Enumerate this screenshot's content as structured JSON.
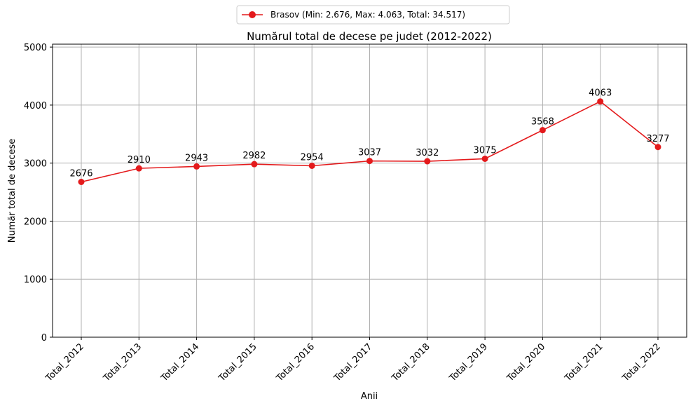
{
  "chart_data": {
    "type": "line",
    "title": "Numărul total de decese pe judet (2012-2022)",
    "xlabel": "Anii",
    "ylabel": "Număr total de decese",
    "categories": [
      "Total_2012",
      "Total_2013",
      "Total_2014",
      "Total_2015",
      "Total_2016",
      "Total_2017",
      "Total_2018",
      "Total_2019",
      "Total_2020",
      "Total_2021",
      "Total_2022"
    ],
    "series": [
      {
        "name": "Brasov (Min: 2.676, Max: 4.063, Total: 34.517)",
        "color": "#e41a1c",
        "values": [
          2676,
          2910,
          2943,
          2982,
          2954,
          3037,
          3032,
          3075,
          3568,
          4063,
          3277
        ]
      }
    ],
    "ylim": [
      0,
      5050
    ],
    "yticks": [
      0,
      1000,
      2000,
      3000,
      4000,
      5000
    ],
    "grid": true,
    "legend_position": "top-center"
  }
}
